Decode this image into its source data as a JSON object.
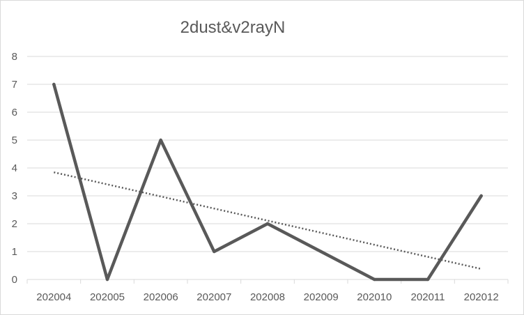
{
  "chart_data": {
    "type": "line",
    "title": "2dust&v2rayN",
    "categories": [
      "202004",
      "202005",
      "202006",
      "202007",
      "202008",
      "202009",
      "202010",
      "202011",
      "202012"
    ],
    "series": [
      {
        "values": [
          7,
          0,
          5,
          1,
          2,
          1,
          0,
          0,
          3
        ]
      }
    ],
    "trendline": {
      "type": "linear",
      "style": "dotted"
    },
    "xlabel": "",
    "ylabel": "",
    "ylim": [
      0,
      8
    ],
    "yticks": [
      0,
      1,
      2,
      3,
      4,
      5,
      6,
      7,
      8
    ],
    "grid": true,
    "legend": "none",
    "colors": {
      "line": "#595959",
      "grid": "#d9d9d9",
      "text": "#595959"
    }
  }
}
